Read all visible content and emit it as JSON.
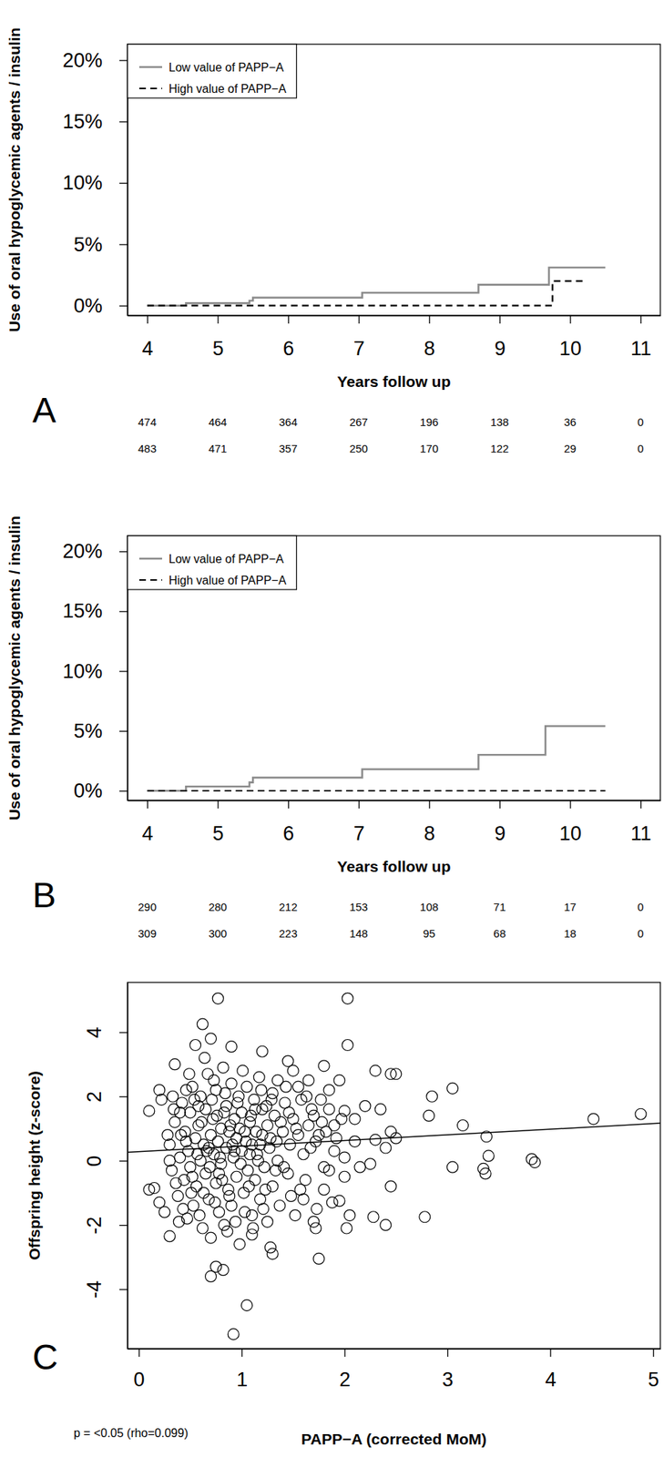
{
  "chart_data": [
    {
      "type": "step",
      "panel_label": "A",
      "x_label": "Years follow up",
      "y_label": "Use of oral hypoglycemic agents / insulin",
      "xlim": [
        3.72,
        11.28
      ],
      "xticks": [
        4,
        5,
        6,
        7,
        8,
        9,
        10,
        11
      ],
      "ylim": [
        -0.8,
        21.3
      ],
      "yticks": [
        {
          "value": 0,
          "label": "0%"
        },
        {
          "value": 5,
          "label": "5%"
        },
        {
          "value": 10,
          "label": "10%"
        },
        {
          "value": 15,
          "label": "15%"
        },
        {
          "value": 20,
          "label": "20%"
        }
      ],
      "grid": false,
      "legend": "topleft",
      "series": [
        {
          "name": "Low value of PAPP−A",
          "color": "#8c8c8c",
          "line_style": "solid",
          "x": [
            4,
            4.55,
            5.45,
            5.5,
            7.05,
            8.7,
            9.7,
            10.5
          ],
          "values": [
            0,
            0.2,
            0.4,
            0.65,
            1.05,
            1.7,
            3.1,
            3.1
          ]
        },
        {
          "name": "High value of PAPP−A",
          "color": "#000000",
          "line_style": "dashed",
          "x": [
            4,
            9.75,
            10.2
          ],
          "values": [
            0,
            2.0,
            2.0
          ]
        }
      ],
      "at_risk": [
        [
          474,
          464,
          364,
          267,
          196,
          138,
          36,
          0
        ],
        [
          483,
          471,
          357,
          250,
          170,
          122,
          29,
          0
        ]
      ]
    },
    {
      "type": "step",
      "panel_label": "B",
      "x_label": "Years follow up",
      "y_label": "Use of oral hypoglycemic agents / insulin",
      "xlim": [
        3.72,
        11.28
      ],
      "xticks": [
        4,
        5,
        6,
        7,
        8,
        9,
        10,
        11
      ],
      "ylim": [
        -0.8,
        21.3
      ],
      "yticks": [
        {
          "value": 0,
          "label": "0%"
        },
        {
          "value": 5,
          "label": "5%"
        },
        {
          "value": 10,
          "label": "10%"
        },
        {
          "value": 15,
          "label": "15%"
        },
        {
          "value": 20,
          "label": "20%"
        }
      ],
      "grid": false,
      "legend": "topleft",
      "series": [
        {
          "name": "Low value of PAPP−A",
          "color": "#8c8c8c",
          "line_style": "solid",
          "x": [
            4,
            4.55,
            5.45,
            5.5,
            7.05,
            8.7,
            9.65,
            10.5
          ],
          "values": [
            0,
            0.35,
            0.7,
            1.1,
            1.8,
            3.0,
            5.4,
            5.4
          ]
        },
        {
          "name": "High value of PAPP−A",
          "color": "#000000",
          "line_style": "dashed",
          "x": [
            4,
            10.5
          ],
          "values": [
            0,
            0
          ]
        }
      ],
      "at_risk": [
        [
          290,
          280,
          212,
          153,
          108,
          71,
          17,
          0
        ],
        [
          309,
          300,
          223,
          148,
          95,
          68,
          18,
          0
        ]
      ]
    },
    {
      "type": "scatter",
      "panel_label": "C",
      "x_label": "PAPP−A (corrected MoM)",
      "y_label": "Offspring height (z-score)",
      "annotation": "p = <0.05 (rho=0.099)",
      "xlim": [
        -0.11,
        5.07
      ],
      "xticks": [
        0,
        1,
        2,
        3,
        4,
        5
      ],
      "ylim": [
        -5.85,
        5.55
      ],
      "yticks": [
        -4,
        -2,
        0,
        2,
        4
      ],
      "grid": false,
      "marker": "circle",
      "color": "#000000",
      "fit": {
        "intercept": 0.28,
        "slope": 0.175
      },
      "x": [
        0.77,
        2.03,
        2.03,
        0.62,
        0.9,
        0.7,
        1.2,
        0.55,
        0.35,
        1.45,
        1.8,
        2.3,
        2.45,
        2.5,
        2.85,
        3.05,
        3.15,
        2.82,
        3.05,
        3.35,
        3.37,
        3.38,
        3.4,
        3.82,
        3.85,
        4.42,
        4.88,
        2.78,
        2.28,
        2.4,
        2.02,
        2.05,
        1.75,
        1.72,
        1.3,
        1.28,
        1.1,
        0.92,
        1.05,
        0.7,
        0.75,
        0.82,
        0.3,
        0.1,
        0.15,
        0.1,
        0.2,
        0.22,
        0.25,
        0.2,
        2.45,
        2.45,
        2.5,
        2.35,
        2.2,
        2.1,
        2.0,
        2.1,
        2.15,
        2.3,
        2.4,
        2.25,
        1.95,
        1.85,
        1.65,
        1.5,
        1.55,
        1.7,
        1.9,
        1.75,
        1.6,
        1.8,
        1.95,
        1.85,
        1.9,
        2.0,
        0.3,
        0.32,
        0.35,
        0.38,
        0.4,
        0.42,
        0.44,
        0.45,
        0.47,
        0.48,
        0.5,
        0.5,
        0.52,
        0.53,
        0.55,
        0.56,
        0.58,
        0.6,
        0.6,
        0.62,
        0.63,
        0.65,
        0.65,
        0.67,
        0.68,
        0.7,
        0.7,
        0.72,
        0.73,
        0.75,
        0.75,
        0.77,
        0.78,
        0.8,
        0.8,
        0.82,
        0.83,
        0.85,
        0.85,
        0.87,
        0.88,
        0.9,
        0.9,
        0.92,
        0.93,
        0.95,
        0.95,
        0.97,
        0.98,
        1.0,
        1.0,
        1.02,
        1.03,
        1.05,
        1.06,
        1.08,
        1.1,
        1.1,
        1.12,
        1.13,
        1.15,
        1.17,
        1.18,
        1.2,
        1.2,
        1.22,
        1.25,
        1.25,
        1.27,
        1.3,
        1.3,
        1.32,
        1.35,
        1.35,
        1.37,
        1.4,
        1.42,
        1.45,
        1.47,
        1.5,
        1.52,
        1.55,
        1.58,
        1.6,
        1.62,
        1.65,
        1.68,
        1.7,
        1.72,
        1.78,
        1.8,
        1.82,
        1.85,
        1.88,
        1.92,
        1.97,
        2.0,
        0.28,
        0.33,
        0.36,
        0.4,
        0.43,
        0.46,
        0.49,
        0.51,
        0.54,
        0.57,
        0.59,
        0.61,
        0.64,
        0.66,
        0.69,
        0.71,
        0.74,
        0.76,
        0.79,
        0.81,
        0.84,
        0.86,
        0.89,
        0.91,
        0.94,
        0.96,
        0.99,
        1.01,
        1.04,
        1.07,
        1.09,
        1.11,
        1.14,
        1.16,
        1.19,
        1.21,
        1.24,
        1.28,
        1.33,
        1.38,
        1.43,
        1.48,
        1.53,
        1.57,
        1.63,
        1.67,
        1.73,
        1.77,
        0.3,
        0.34,
        0.39,
        0.41,
        0.46,
        0.52,
        0.58,
        0.63,
        0.68,
        0.73,
        0.78,
        0.83,
        0.88,
        0.93,
        0.98,
        1.03,
        1.08,
        1.13,
        1.18,
        1.23,
        1.29,
        1.34,
        1.41,
        1.46
      ],
      "values": [
        5.05,
        5.05,
        3.6,
        4.25,
        3.55,
        3.8,
        3.4,
        3.6,
        3.0,
        3.1,
        2.95,
        2.8,
        2.7,
        2.7,
        2.0,
        2.25,
        1.1,
        1.4,
        -0.2,
        -0.25,
        -0.4,
        0.75,
        0.15,
        0.05,
        -0.05,
        1.3,
        1.45,
        -1.75,
        -1.75,
        -2.0,
        -2.1,
        -1.7,
        -3.05,
        -2.1,
        -2.9,
        -2.7,
        -2.3,
        -5.4,
        -4.5,
        -3.6,
        -3.3,
        -3.4,
        -2.35,
        -0.9,
        -0.85,
        1.55,
        2.2,
        1.9,
        -1.6,
        -1.3,
        -0.8,
        0.9,
        0.7,
        1.6,
        1.7,
        1.3,
        1.55,
        0.6,
        -0.2,
        0.65,
        0.4,
        -0.1,
        2.5,
        2.2,
        2.5,
        2.8,
        2.3,
        1.4,
        1.1,
        0.8,
        -1.2,
        -0.9,
        -1.25,
        -0.3,
        0.3,
        -0.5,
        0.5,
        -0.3,
        1.2,
        -1.1,
        0.1,
        1.8,
        -0.6,
        0.9,
        -1.8,
        0.3,
        1.5,
        -0.2,
        2.3,
        -1.4,
        0.7,
        -0.8,
        1.1,
        0.0,
        2.0,
        -2.1,
        0.5,
        1.6,
        -0.4,
        2.7,
        -1.2,
        0.8,
        -2.4,
        1.3,
        0.2,
        -0.7,
        2.2,
        0.6,
        -1.6,
        1.0,
        -0.1,
        2.9,
        -2.0,
        0.4,
        1.7,
        -0.9,
        0.9,
        -1.4,
        2.4,
        0.1,
        1.3,
        -0.5,
        0.7,
        2.0,
        -2.6,
        0.3,
        1.5,
        -1.0,
        0.9,
        2.3,
        -0.3,
        1.2,
        -1.7,
        0.5,
        1.9,
        -0.6,
        0.2,
        2.6,
        -1.2,
        0.8,
        1.6,
        -0.2,
        1.1,
        -1.9,
        0.4,
        2.1,
        -0.8,
        1.4,
        0.0,
        2.5,
        -1.4,
        0.9,
        1.8,
        -0.4,
        0.5,
        1.3,
        -1.7,
        0.8,
        1.9,
        0.2,
        -0.6,
        1.1,
        1.6,
        -1.9,
        0.6,
        1.2,
        -0.2,
        0.9,
        1.6,
        -1.3,
        0.7,
        1.3,
        0.1,
        0.8,
        2.0,
        -0.7,
        1.5,
        -1.5,
        0.6,
        2.7,
        -1.0,
        1.9,
        0.2,
        -1.7,
        1.2,
        3.2,
        0.3,
        -0.2,
        1.9,
        -1.3,
        1.4,
        0.1,
        -0.6,
        2.1,
        -2.2,
        1.1,
        0.5,
        -1.9,
        1.8,
        -0.1,
        2.8,
        0.6,
        -0.8,
        1.4,
        -2.1,
        0.9,
        0.0,
        2.2,
        -1.5,
        1.7,
        0.7,
        -0.3,
        1.2,
        2.3,
        -1.1,
        1.0,
        -0.9,
        2.0,
        0.4,
        -1.5,
        1.9,
        0.0,
        1.6,
        -1.9,
        0.8,
        2.2,
        -0.5,
        1.7,
        -1.0,
        0.4,
        2.5,
        -0.4,
        1.5,
        -1.1,
        0.3,
        1.0,
        -1.6,
        0.2,
        1.6,
        0.5,
        -0.9,
        1.9,
        0.6,
        -0.2,
        1.5
      ]
    }
  ]
}
